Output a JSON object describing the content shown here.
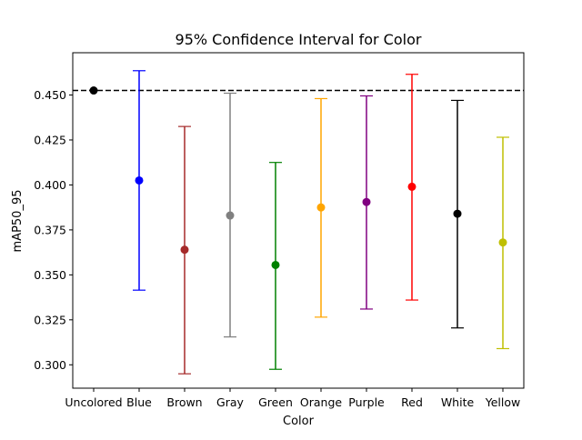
{
  "chart_data": {
    "type": "errorbar",
    "title": "95% Confidence Interval for Color",
    "xlabel": "Color",
    "ylabel": "mAP50_95",
    "ylim": [
      0.287,
      0.4735
    ],
    "yticks": [
      "0.300",
      "0.325",
      "0.350",
      "0.375",
      "0.400",
      "0.425",
      "0.450"
    ],
    "grid": false,
    "reference_line": {
      "y": 0.4525,
      "style": "dashed",
      "color": "#000000"
    },
    "categories": [
      "Uncolored",
      "Blue",
      "Brown",
      "Gray",
      "Green",
      "Orange",
      "Purple",
      "Red",
      "White",
      "Yellow"
    ],
    "points": [
      {
        "category": "Uncolored",
        "mean": 0.4525,
        "lower": null,
        "upper": null,
        "color": "#000000"
      },
      {
        "category": "Blue",
        "mean": 0.4025,
        "lower": 0.3415,
        "upper": 0.4635,
        "color": "#0000ff"
      },
      {
        "category": "Brown",
        "mean": 0.364,
        "lower": 0.295,
        "upper": 0.4325,
        "color": "#a52a2a"
      },
      {
        "category": "Gray",
        "mean": 0.383,
        "lower": 0.3155,
        "upper": 0.451,
        "color": "#808080"
      },
      {
        "category": "Green",
        "mean": 0.3555,
        "lower": 0.2975,
        "upper": 0.4125,
        "color": "#008000"
      },
      {
        "category": "Orange",
        "mean": 0.3875,
        "lower": 0.3265,
        "upper": 0.448,
        "color": "#ffa500"
      },
      {
        "category": "Purple",
        "mean": 0.3905,
        "lower": 0.331,
        "upper": 0.4495,
        "color": "#800080"
      },
      {
        "category": "Red",
        "mean": 0.399,
        "lower": 0.336,
        "upper": 0.4615,
        "color": "#ff0000"
      },
      {
        "category": "White",
        "mean": 0.384,
        "lower": 0.3205,
        "upper": 0.447,
        "color": "#000000"
      },
      {
        "category": "Yellow",
        "mean": 0.368,
        "lower": 0.309,
        "upper": 0.4265,
        "color": "#bfbf00"
      }
    ]
  }
}
